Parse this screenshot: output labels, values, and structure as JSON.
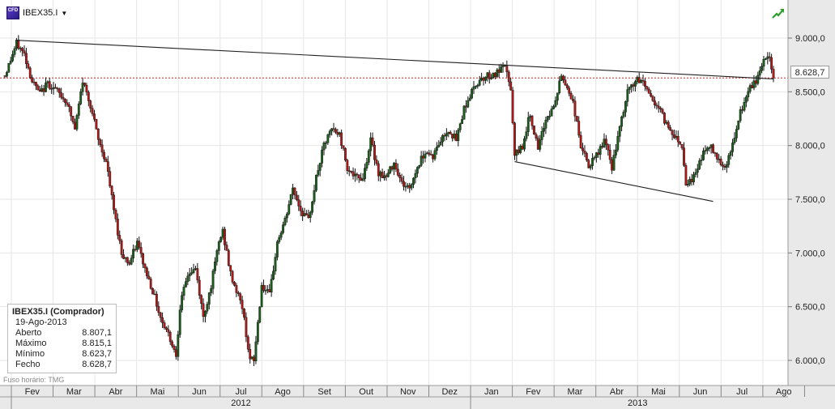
{
  "header": {
    "symbol": "IBEX35.I",
    "cfd_icon": "CFD",
    "dropdown_icon": "dropdown-arrow-icon",
    "trend_icon": "trend-up-icon"
  },
  "price_tag": "8.628,7",
  "info_box": {
    "title": "IBEX35.I (Comprador)",
    "date": "19-Ago-2013",
    "rows": [
      {
        "label": "Aberto",
        "value": "8.807,1"
      },
      {
        "label": "Máximo",
        "value": "8.815,1"
      },
      {
        "label": "Mínimo",
        "value": "8.623,7"
      },
      {
        "label": "Fecho",
        "value": "8.628,7"
      }
    ]
  },
  "timezone": "Fuso horário: TMG",
  "colors": {
    "up": "#1a5c1a",
    "down": "#b01818",
    "reference_line": "#cc2222",
    "trendline": "#222222",
    "axis_bg": "#e8e8e8",
    "grid": "#e6e6e6"
  },
  "chart_data": {
    "type": "candlestick",
    "ylim": [
      5900,
      9250
    ],
    "y_ticks": [
      {
        "value": 9000,
        "label": "9.000,0"
      },
      {
        "value": 8500,
        "label": "8.500,0"
      },
      {
        "value": 8000,
        "label": "8.000,0"
      },
      {
        "value": 7500,
        "label": "7.500,0"
      },
      {
        "value": 7000,
        "label": "7.000,0"
      },
      {
        "value": 6500,
        "label": "6.500,0"
      },
      {
        "value": 6000,
        "label": "6.000,0"
      }
    ],
    "x_months": [
      "Fev",
      "Mar",
      "Abr",
      "Mai",
      "Jun",
      "Jul",
      "Ago",
      "Set",
      "Out",
      "Nov",
      "Dez",
      "Jan",
      "Fev",
      "Mar",
      "Abr",
      "Mai",
      "Jun",
      "Jul",
      "Ago"
    ],
    "x_years": [
      {
        "label": "2012",
        "start_month": 0,
        "end_month": 10
      },
      {
        "label": "2013",
        "start_month": 11,
        "end_month": 18
      }
    ],
    "reference_line": 8628.7,
    "last_close": 8628.7,
    "anchors": [
      [
        0,
        8650
      ],
      [
        3,
        8800
      ],
      [
        6,
        8950
      ],
      [
        10,
        8850
      ],
      [
        14,
        8600
      ],
      [
        18,
        8480
      ],
      [
        22,
        8580
      ],
      [
        26,
        8520
      ],
      [
        32,
        8400
      ],
      [
        36,
        8150
      ],
      [
        40,
        8600
      ],
      [
        44,
        8380
      ],
      [
        48,
        8050
      ],
      [
        52,
        7850
      ],
      [
        56,
        7400
      ],
      [
        60,
        7000
      ],
      [
        64,
        6900
      ],
      [
        68,
        7100
      ],
      [
        72,
        6850
      ],
      [
        76,
        6650
      ],
      [
        80,
        6400
      ],
      [
        84,
        6250
      ],
      [
        88,
        6050
      ],
      [
        90,
        6500
      ],
      [
        94,
        6800
      ],
      [
        98,
        6850
      ],
      [
        102,
        6400
      ],
      [
        106,
        6700
      ],
      [
        110,
        7100
      ],
      [
        112,
        7200
      ],
      [
        116,
        6800
      ],
      [
        118,
        6700
      ],
      [
        122,
        6500
      ],
      [
        126,
        6000
      ],
      [
        128,
        6000
      ],
      [
        132,
        6700
      ],
      [
        136,
        6600
      ],
      [
        140,
        7100
      ],
      [
        144,
        7300
      ],
      [
        148,
        7600
      ],
      [
        152,
        7400
      ],
      [
        156,
        7300
      ],
      [
        160,
        7700
      ],
      [
        164,
        8000
      ],
      [
        168,
        8150
      ],
      [
        172,
        8100
      ],
      [
        176,
        7800
      ],
      [
        180,
        7700
      ],
      [
        184,
        7700
      ],
      [
        188,
        8050
      ],
      [
        192,
        7750
      ],
      [
        196,
        7700
      ],
      [
        200,
        7850
      ],
      [
        204,
        7650
      ],
      [
        208,
        7600
      ],
      [
        212,
        7800
      ],
      [
        216,
        7950
      ],
      [
        220,
        7900
      ],
      [
        224,
        8050
      ],
      [
        228,
        8150
      ],
      [
        232,
        8050
      ],
      [
        236,
        8350
      ],
      [
        240,
        8500
      ],
      [
        244,
        8620
      ],
      [
        248,
        8650
      ],
      [
        252,
        8660
      ],
      [
        256,
        8720
      ],
      [
        258,
        8700
      ],
      [
        260,
        8500
      ],
      [
        262,
        7900
      ],
      [
        266,
        8000
      ],
      [
        270,
        8300
      ],
      [
        274,
        7950
      ],
      [
        278,
        8250
      ],
      [
        282,
        8350
      ],
      [
        286,
        8650
      ],
      [
        290,
        8500
      ],
      [
        292,
        8400
      ],
      [
        296,
        8000
      ],
      [
        300,
        7800
      ],
      [
        304,
        7900
      ],
      [
        308,
        8050
      ],
      [
        312,
        7800
      ],
      [
        316,
        8150
      ],
      [
        320,
        8500
      ],
      [
        324,
        8600
      ],
      [
        328,
        8600
      ],
      [
        332,
        8450
      ],
      [
        336,
        8350
      ],
      [
        340,
        8200
      ],
      [
        344,
        8100
      ],
      [
        348,
        8000
      ],
      [
        350,
        7650
      ],
      [
        354,
        7700
      ],
      [
        358,
        7900
      ],
      [
        362,
        8000
      ],
      [
        366,
        7900
      ],
      [
        370,
        7800
      ],
      [
        374,
        8000
      ],
      [
        378,
        8300
      ],
      [
        382,
        8500
      ],
      [
        386,
        8600
      ],
      [
        390,
        8800
      ],
      [
        393,
        8820
      ],
      [
        395,
        8629
      ]
    ],
    "trendlines": [
      {
        "points": [
          [
            6,
            8980
          ],
          [
            395,
            8620
          ]
        ]
      },
      {
        "points": [
          [
            262,
            7850
          ],
          [
            364,
            7480
          ]
        ]
      }
    ]
  }
}
